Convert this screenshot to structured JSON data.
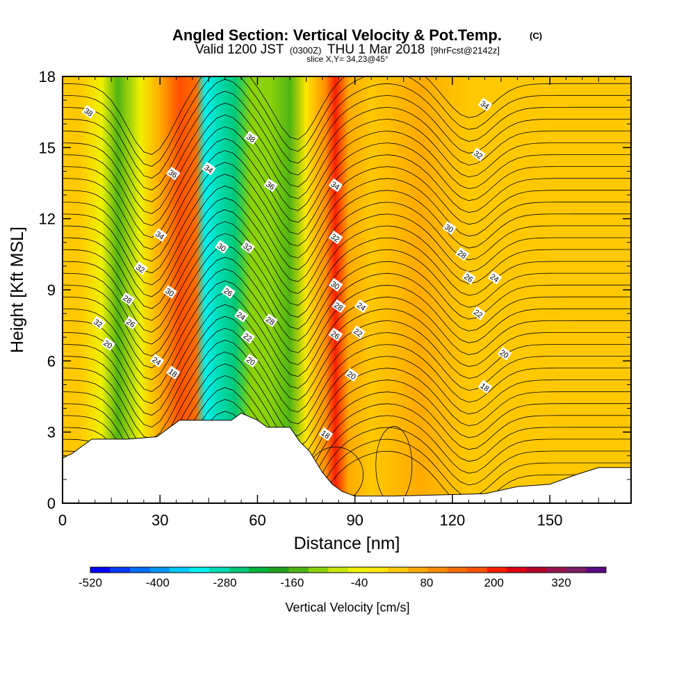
{
  "chart_data": {
    "type": "heatmap",
    "title": "Angled Section: Vertical Velocity & Pot.Temp.",
    "title_badge": "(C)",
    "subtitle_prefix": "Valid 1200 JST",
    "subtitle_utc": "(0300Z)",
    "subtitle_date": "THU 1 Mar 2018",
    "subtitle_fcst": "[9hrFcst@2142z]",
    "slice_info": "slice X,Y= 34,23@45°",
    "xlabel": "Distance [nm]",
    "ylabel": "Height [Kft MSL]",
    "xlim": [
      0,
      175
    ],
    "ylim": [
      0,
      18
    ],
    "x_ticks": [
      "0",
      "30",
      "60",
      "90",
      "120",
      "150"
    ],
    "x_tick_values": [
      0,
      30,
      60,
      90,
      120,
      150
    ],
    "y_ticks": [
      "0",
      "3",
      "6",
      "9",
      "12",
      "15",
      "18"
    ],
    "y_tick_values": [
      0,
      3,
      6,
      9,
      12,
      15,
      18
    ],
    "grid": false,
    "colorbar": {
      "label": "Vertical Velocity [cm/s]",
      "min": -520,
      "max": 400,
      "tick_labels": [
        "-520",
        "-400",
        "-280",
        "-160",
        "-40",
        "80",
        "200",
        "320"
      ],
      "tick_values": [
        -520,
        -400,
        -280,
        -160,
        -40,
        80,
        200,
        320
      ],
      "colors": [
        "#0000ff",
        "#0a3cff",
        "#006eff",
        "#0096ff",
        "#00c8ff",
        "#00f0f0",
        "#00dcb4",
        "#00c878",
        "#00b43c",
        "#1ea01e",
        "#50b414",
        "#8cd20a",
        "#c8e600",
        "#f0f000",
        "#ffe600",
        "#ffc800",
        "#ffaa00",
        "#ff8c00",
        "#ff6e00",
        "#ff5000",
        "#ff1e00",
        "#dc0014",
        "#b40028",
        "#961450",
        "#781e64",
        "#5a0a82"
      ]
    },
    "vertical_velocity_bands": [
      {
        "x": 0,
        "value": 40
      },
      {
        "x": 5,
        "value": 20
      },
      {
        "x": 12,
        "value": -60
      },
      {
        "x": 17,
        "value": -150
      },
      {
        "x": 24,
        "value": -60
      },
      {
        "x": 30,
        "value": 80
      },
      {
        "x": 36,
        "value": 180
      },
      {
        "x": 41,
        "value": 130
      },
      {
        "x": 44,
        "value": -340
      },
      {
        "x": 48,
        "value": -300
      },
      {
        "x": 53,
        "value": -240
      },
      {
        "x": 58,
        "value": -120
      },
      {
        "x": 64,
        "value": -100
      },
      {
        "x": 70,
        "value": -150
      },
      {
        "x": 75,
        "value": -20
      },
      {
        "x": 81,
        "value": 110
      },
      {
        "x": 84,
        "value": 190
      },
      {
        "x": 88,
        "value": 60
      },
      {
        "x": 95,
        "value": 40
      },
      {
        "x": 110,
        "value": 50
      },
      {
        "x": 125,
        "value": 30
      },
      {
        "x": 140,
        "value": 40
      },
      {
        "x": 160,
        "value": 30
      },
      {
        "x": 175,
        "value": 20
      }
    ],
    "terrain_kft": [
      [
        0,
        1.9
      ],
      [
        3,
        2.1
      ],
      [
        6,
        2.4
      ],
      [
        9,
        2.7
      ],
      [
        20,
        2.7
      ],
      [
        29,
        2.8
      ],
      [
        33,
        3.2
      ],
      [
        36,
        3.5
      ],
      [
        52,
        3.5
      ],
      [
        55,
        3.8
      ],
      [
        60,
        3.5
      ],
      [
        63,
        3.2
      ],
      [
        70,
        3.2
      ],
      [
        73,
        2.6
      ],
      [
        76,
        2.2
      ],
      [
        80,
        1.3
      ],
      [
        83,
        0.8
      ],
      [
        86,
        0.5
      ],
      [
        90,
        0.3
      ],
      [
        102,
        0.3
      ],
      [
        130,
        0.4
      ],
      [
        140,
        0.7
      ],
      [
        150,
        0.8
      ],
      [
        158,
        1.2
      ],
      [
        165,
        1.5
      ],
      [
        175,
        1.5
      ]
    ],
    "pot_temp_contour_labels": [
      {
        "text": "38",
        "x": 8,
        "y": 16.5
      },
      {
        "text": "36",
        "x": 34,
        "y": 13.9
      },
      {
        "text": "34",
        "x": 30,
        "y": 11.3
      },
      {
        "text": "32",
        "x": 24,
        "y": 9.9
      },
      {
        "text": "30",
        "x": 33,
        "y": 8.9
      },
      {
        "text": "28",
        "x": 20,
        "y": 8.6
      },
      {
        "text": "26",
        "x": 21,
        "y": 7.6
      },
      {
        "text": "32",
        "x": 11,
        "y": 7.6
      },
      {
        "text": "20",
        "x": 14,
        "y": 6.7
      },
      {
        "text": "24",
        "x": 29,
        "y": 6.0
      },
      {
        "text": "18",
        "x": 34,
        "y": 5.5
      },
      {
        "text": "38",
        "x": 58,
        "y": 15.4
      },
      {
        "text": "34",
        "x": 45,
        "y": 14.1
      },
      {
        "text": "36",
        "x": 64,
        "y": 13.4
      },
      {
        "text": "30",
        "x": 49,
        "y": 10.8
      },
      {
        "text": "32",
        "x": 57,
        "y": 10.8
      },
      {
        "text": "26",
        "x": 51,
        "y": 8.9
      },
      {
        "text": "24",
        "x": 55,
        "y": 7.9
      },
      {
        "text": "28",
        "x": 64,
        "y": 7.7
      },
      {
        "text": "22",
        "x": 57,
        "y": 7.0
      },
      {
        "text": "20",
        "x": 58,
        "y": 6.0
      },
      {
        "text": "34",
        "x": 84,
        "y": 13.4
      },
      {
        "text": "32",
        "x": 84,
        "y": 11.2
      },
      {
        "text": "30",
        "x": 84,
        "y": 9.2
      },
      {
        "text": "28",
        "x": 85,
        "y": 8.3
      },
      {
        "text": "24",
        "x": 92,
        "y": 8.3
      },
      {
        "text": "26",
        "x": 84,
        "y": 7.1
      },
      {
        "text": "22",
        "x": 91,
        "y": 7.2
      },
      {
        "text": "20",
        "x": 89,
        "y": 5.4
      },
      {
        "text": "18",
        "x": 81,
        "y": 2.9
      },
      {
        "text": "34",
        "x": 130,
        "y": 16.8
      },
      {
        "text": "32",
        "x": 128,
        "y": 14.7
      },
      {
        "text": "30",
        "x": 119,
        "y": 11.6
      },
      {
        "text": "28",
        "x": 123,
        "y": 10.5
      },
      {
        "text": "26",
        "x": 125,
        "y": 9.5
      },
      {
        "text": "24",
        "x": 133,
        "y": 9.5
      },
      {
        "text": "22",
        "x": 128,
        "y": 8.0
      },
      {
        "text": "20",
        "x": 136,
        "y": 6.3
      },
      {
        "text": "18",
        "x": 130,
        "y": 4.9
      }
    ]
  }
}
